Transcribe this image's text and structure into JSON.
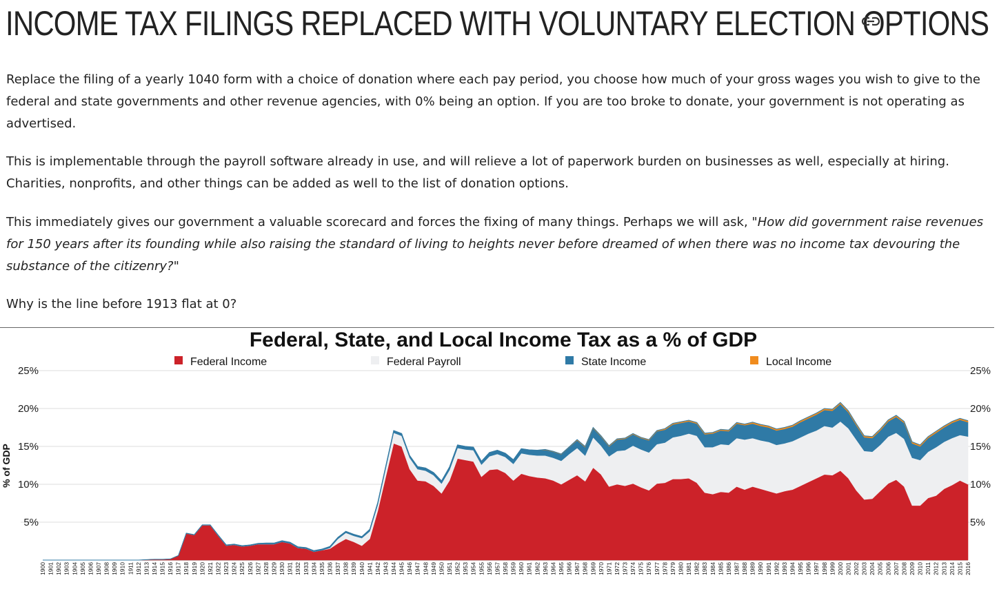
{
  "article": {
    "title": "INCOME TAX FILINGS REPLACED WITH VOLUNTARY ELECTION OPTIONS",
    "link_icon": "link-icon",
    "paragraph1": "Replace the filing of a yearly 1040 form with a choice of donation where each pay period, you choose how much of your gross wages you wish to give to the federal and state governments and other revenue agencies, with 0% being an option. If you are too broke to donate, your government is not operating as advertised.",
    "paragraph2": "This is implementable through the payroll software already in use, and will relieve a lot of paperwork burden on businesses as well, especially at hiring. Charities, nonprofits, and other things can be added as well to the list of donation options.",
    "paragraph3_plain": "This immediately gives our government a valuable scorecard and forces the fixing of many things. Perhaps we will ask, ",
    "paragraph3_quote": "\"How did government raise revenues for 150 years after its founding while also raising the standard of living to heights never before dreamed of when there was no income tax devouring the substance of the citizenry?\"",
    "paragraph4": "Why is the line before 1913 flat at 0?"
  },
  "chart_data": {
    "type": "area",
    "stacked": true,
    "title": "Federal, State, and Local Income Tax as a % of GDP",
    "ylabel": "% of GDP",
    "xlabel": "",
    "ylim": [
      0,
      25
    ],
    "yticks": [
      5,
      10,
      15,
      20,
      25
    ],
    "ytick_labels": [
      "5%",
      "10%",
      "15%",
      "20%",
      "25%"
    ],
    "legend_position": "top",
    "grid": true,
    "x": [
      1900,
      1901,
      1902,
      1903,
      1904,
      1905,
      1906,
      1907,
      1908,
      1909,
      1910,
      1911,
      1912,
      1913,
      1914,
      1915,
      1916,
      1917,
      1918,
      1919,
      1920,
      1921,
      1922,
      1923,
      1924,
      1925,
      1926,
      1927,
      1928,
      1929,
      1930,
      1931,
      1932,
      1933,
      1934,
      1935,
      1936,
      1937,
      1938,
      1939,
      1940,
      1941,
      1942,
      1943,
      1944,
      1945,
      1946,
      1947,
      1948,
      1949,
      1950,
      1951,
      1952,
      1953,
      1954,
      1955,
      1956,
      1957,
      1958,
      1959,
      1960,
      1961,
      1962,
      1963,
      1964,
      1965,
      1966,
      1967,
      1968,
      1969,
      1970,
      1971,
      1972,
      1973,
      1974,
      1975,
      1976,
      1977,
      1978,
      1979,
      1980,
      1981,
      1982,
      1983,
      1984,
      1985,
      1986,
      1987,
      1988,
      1989,
      1990,
      1991,
      1992,
      1993,
      1994,
      1995,
      1996,
      1997,
      1998,
      1999,
      2000,
      2001,
      2002,
      2003,
      2004,
      2005,
      2006,
      2007,
      2008,
      2009,
      2010,
      2011,
      2012,
      2013,
      2014,
      2015,
      2016
    ],
    "series": [
      {
        "name": "Federal Income",
        "color": "#cc2229",
        "values": [
          0,
          0,
          0,
          0,
          0,
          0,
          0,
          0,
          0,
          0,
          0,
          0,
          0,
          0.05,
          0.1,
          0.1,
          0.15,
          0.6,
          3.5,
          3.3,
          4.6,
          4.6,
          3.2,
          1.9,
          2.0,
          1.8,
          1.9,
          2.1,
          2.1,
          2.1,
          2.4,
          2.2,
          1.6,
          1.5,
          1.1,
          1.3,
          1.5,
          2.2,
          2.8,
          2.4,
          1.9,
          2.8,
          6.5,
          11.0,
          15.4,
          15.0,
          12.0,
          10.5,
          10.4,
          9.8,
          8.8,
          10.5,
          13.4,
          13.2,
          13.0,
          11.0,
          11.9,
          12.0,
          11.5,
          10.5,
          11.4,
          11.1,
          10.9,
          10.8,
          10.5,
          10.0,
          10.6,
          11.2,
          10.4,
          12.2,
          11.3,
          9.7,
          10.0,
          9.8,
          10.1,
          9.6,
          9.2,
          10.1,
          10.2,
          10.7,
          10.7,
          10.8,
          10.2,
          8.9,
          8.7,
          9.0,
          8.9,
          9.7,
          9.3,
          9.7,
          9.4,
          9.1,
          8.8,
          9.1,
          9.3,
          9.8,
          10.3,
          10.8,
          11.3,
          11.2,
          11.8,
          10.8,
          9.2,
          8.0,
          8.1,
          9.1,
          10.1,
          10.6,
          9.7,
          7.2,
          7.2,
          8.2,
          8.5,
          9.4,
          9.9,
          10.5,
          10.0
        ]
      },
      {
        "name": "Federal Payroll",
        "color": "#eeeff1",
        "values": [
          0,
          0,
          0,
          0,
          0,
          0,
          0,
          0,
          0,
          0,
          0,
          0,
          0,
          0,
          0,
          0,
          0,
          0,
          0,
          0,
          0,
          0,
          0,
          0,
          0,
          0,
          0,
          0,
          0,
          0,
          0,
          0,
          0,
          0,
          0,
          0,
          0.1,
          0.6,
          0.8,
          0.8,
          1.0,
          1.0,
          0.8,
          1.1,
          1.4,
          1.4,
          1.5,
          1.5,
          1.4,
          1.4,
          1.3,
          1.4,
          1.4,
          1.4,
          1.5,
          1.6,
          1.8,
          2.0,
          2.1,
          2.2,
          2.7,
          2.8,
          2.9,
          3.0,
          3.0,
          3.1,
          3.4,
          3.6,
          3.4,
          4.0,
          3.8,
          4.0,
          4.4,
          4.7,
          5.0,
          5.0,
          5.0,
          5.2,
          5.3,
          5.5,
          5.7,
          5.9,
          6.2,
          6.0,
          6.2,
          6.3,
          6.3,
          6.4,
          6.6,
          6.4,
          6.4,
          6.5,
          6.4,
          6.3,
          6.4,
          6.4,
          6.4,
          6.3,
          6.4,
          6.3,
          6.5,
          6.6,
          6.7,
          6.4,
          6.2,
          6.1,
          6.2,
          6.2,
          6.3,
          6.3,
          6.0,
          6.1,
          6.4,
          6.2,
          6.2,
          6.0,
          6.3
        ]
      },
      {
        "name": "State Income",
        "color": "#2f7aa6",
        "values": [
          0,
          0,
          0,
          0,
          0,
          0,
          0,
          0,
          0,
          0,
          0,
          0,
          0,
          0,
          0,
          0,
          0,
          0,
          0.05,
          0.05,
          0.05,
          0.05,
          0.1,
          0.1,
          0.1,
          0.1,
          0.1,
          0.1,
          0.15,
          0.15,
          0.15,
          0.15,
          0.15,
          0.15,
          0.15,
          0.15,
          0.2,
          0.2,
          0.2,
          0.2,
          0.2,
          0.25,
          0.3,
          0.3,
          0.3,
          0.3,
          0.3,
          0.35,
          0.35,
          0.35,
          0.35,
          0.4,
          0.4,
          0.4,
          0.4,
          0.45,
          0.5,
          0.5,
          0.5,
          0.55,
          0.6,
          0.65,
          0.7,
          0.75,
          0.8,
          0.85,
          0.9,
          1.0,
          1.1,
          1.2,
          1.2,
          1.3,
          1.5,
          1.5,
          1.5,
          1.5,
          1.6,
          1.7,
          1.7,
          1.7,
          1.7,
          1.6,
          1.6,
          1.7,
          1.8,
          1.8,
          1.8,
          1.9,
          1.9,
          1.9,
          1.9,
          1.9,
          1.9,
          1.9,
          1.9,
          2.0,
          2.0,
          2.1,
          2.1,
          2.2,
          2.3,
          2.1,
          1.9,
          1.8,
          1.8,
          1.9,
          2.0,
          2.1,
          2.1,
          1.9,
          1.8,
          1.8,
          1.9,
          1.9,
          2.0,
          2.0,
          1.9
        ]
      },
      {
        "name": "Local Income",
        "color": "#f08c1e",
        "values": [
          0,
          0,
          0,
          0,
          0,
          0,
          0,
          0,
          0,
          0,
          0,
          0,
          0,
          0,
          0,
          0,
          0,
          0,
          0,
          0,
          0,
          0,
          0,
          0,
          0,
          0,
          0,
          0,
          0,
          0,
          0,
          0,
          0,
          0,
          0,
          0,
          0,
          0,
          0,
          0,
          0,
          0,
          0,
          0,
          0,
          0,
          0,
          0,
          0,
          0,
          0,
          0,
          0,
          0,
          0,
          0,
          0,
          0,
          0,
          0,
          0,
          0,
          0,
          0.05,
          0.05,
          0.05,
          0.05,
          0.1,
          0.1,
          0.1,
          0.1,
          0.1,
          0.1,
          0.1,
          0.1,
          0.1,
          0.1,
          0.1,
          0.15,
          0.15,
          0.15,
          0.15,
          0.15,
          0.15,
          0.15,
          0.15,
          0.15,
          0.15,
          0.15,
          0.2,
          0.2,
          0.2,
          0.2,
          0.2,
          0.2,
          0.2,
          0.2,
          0.2,
          0.2,
          0.2,
          0.2,
          0.2,
          0.2,
          0.2,
          0.2,
          0.2,
          0.2,
          0.2,
          0.2,
          0.2,
          0.2,
          0.2,
          0.2,
          0.2,
          0.2,
          0.2,
          0.2
        ]
      }
    ]
  }
}
